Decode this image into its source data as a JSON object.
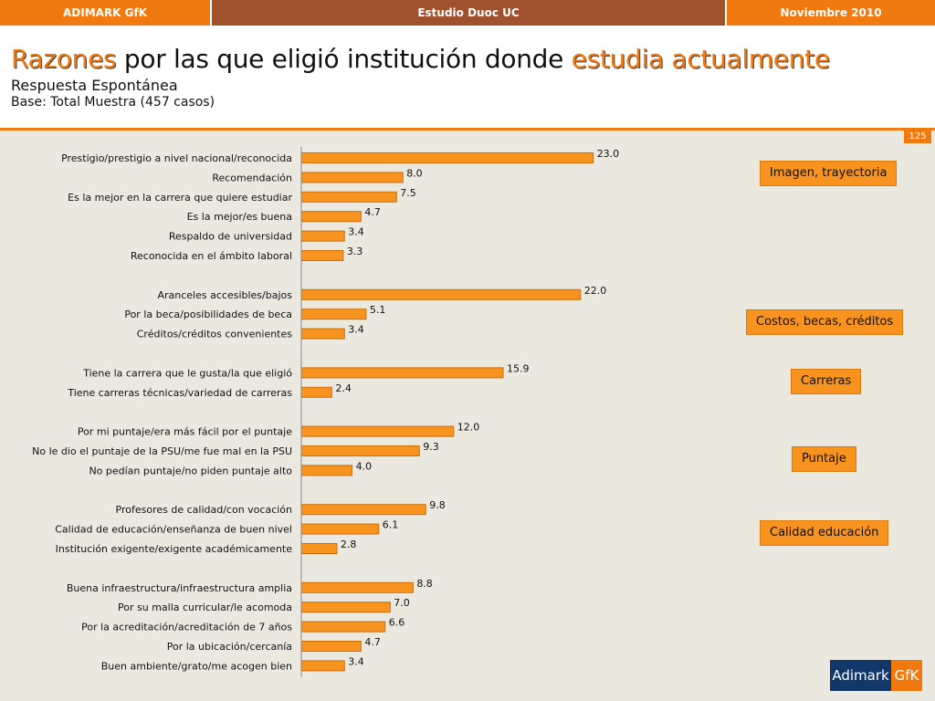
{
  "header": {
    "left": "ADIMARK GfK",
    "center": "Estudio Duoc UC",
    "right": "Noviembre 2010"
  },
  "title": {
    "part1": "Razones",
    "part2": " por las que eligió institución donde ",
    "part3": "estudia actualmente"
  },
  "subtitle": "Respuesta Espontánea",
  "base": "Base: Total Muestra (457 casos)",
  "page_number": "125",
  "category_boxes": [
    "Imagen, trayectoria",
    "Costos, becas, créditos",
    "Carreras",
    "Puntaje",
    "Calidad educación"
  ],
  "logo": {
    "brand": "Adimark",
    "partner": "GfK"
  },
  "colors": {
    "bar": "#f7931e",
    "bar_border": "#c86f0c",
    "accent": "#f07a10"
  },
  "chart_data": {
    "type": "bar",
    "orientation": "horizontal",
    "title": "",
    "xlabel": "",
    "ylabel": "",
    "xlim": [
      0,
      30
    ],
    "grid": false,
    "categories": [
      "Prestigio/prestigio a nivel nacional/reconocida",
      "Recomendación",
      "Es la mejor en la carrera que quiere estudiar",
      "Es la mejor/es buena",
      "Respaldo de universidad",
      "Reconocida en el ámbito laboral",
      "Aranceles accesibles/bajos",
      "Por la beca/posibilidades de beca",
      "Créditos/créditos convenientes",
      "Tiene la carrera que le gusta/la que eligió",
      "Tiene carreras técnicas/variedad de carreras",
      "Por mi puntaje/era más fácil por el puntaje",
      "No le dio el puntaje de la PSU/me fue mal en la PSU",
      "No pedían puntaje/no piden puntaje alto",
      "Profesores de calidad/con vocación",
      "Calidad de educación/enseñanza de buen nivel",
      "Institución exigente/exigente académicamente",
      "Buena infraestructura/infraestructura amplia",
      "Por su malla curricular/le acomoda",
      "Por la acreditación/acreditación de 7 años",
      "Por la ubicación/cercanía",
      "Buen ambiente/grato/me acogen bien"
    ],
    "values": [
      23.0,
      8.0,
      7.5,
      4.7,
      3.4,
      3.3,
      22.0,
      5.1,
      3.4,
      15.9,
      2.4,
      12.0,
      9.3,
      4.0,
      9.8,
      6.1,
      2.8,
      8.8,
      7.0,
      6.6,
      4.7,
      3.4
    ],
    "value_labels": [
      "23.0",
      "8.0",
      "7.5",
      "4.7",
      "3.4",
      "3.3",
      "22.0",
      "5.1",
      "3.4",
      "15.9",
      "2.4",
      "12.0",
      "9.3",
      "4.0",
      "9.8",
      "6.1",
      "2.8",
      "8.8",
      "7.0",
      "6.6",
      "4.7",
      "3.4"
    ],
    "groups": [
      {
        "name": "Imagen, trayectoria",
        "items": [
          0,
          1,
          2,
          3,
          4,
          5
        ]
      },
      {
        "name": "Costos, becas, créditos",
        "items": [
          6,
          7,
          8
        ]
      },
      {
        "name": "Carreras",
        "items": [
          9,
          10
        ]
      },
      {
        "name": "Puntaje",
        "items": [
          11,
          12,
          13
        ]
      },
      {
        "name": "Calidad educación",
        "items": [
          14,
          15,
          16
        ]
      },
      {
        "name": "",
        "items": [
          17,
          18,
          19,
          20,
          21
        ]
      }
    ]
  }
}
